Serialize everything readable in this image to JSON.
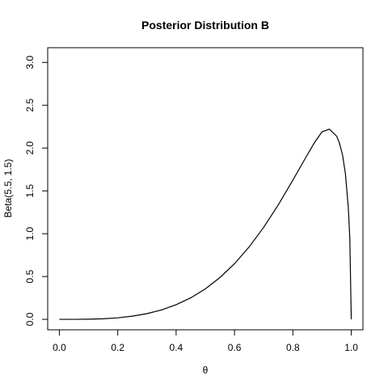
{
  "chart_data": {
    "type": "line",
    "title": "Posterior Distribution B",
    "xlabel": "θ",
    "ylabel": "Beta(5.5, 1.5)",
    "xlim": [
      -0.04,
      1.04
    ],
    "ylim": [
      -0.122,
      3.172
    ],
    "xticks": [
      0.0,
      0.2,
      0.4,
      0.6,
      0.8,
      1.0
    ],
    "xtick_labels": [
      "0.0",
      "0.2",
      "0.4",
      "0.6",
      "0.8",
      "1.0"
    ],
    "yticks": [
      0.0,
      0.5,
      1.0,
      1.5,
      2.0,
      2.5,
      3.0
    ],
    "ytick_labels": [
      "0.0",
      "0.5",
      "1.0",
      "1.5",
      "2.0",
      "2.5",
      "3.0"
    ],
    "grid": false,
    "legend": "none",
    "series": [
      {
        "color": "#000000",
        "x": [
          0.0,
          0.05,
          0.1,
          0.15,
          0.2,
          0.25,
          0.3,
          0.35,
          0.4,
          0.45,
          0.5,
          0.55,
          0.6,
          0.65,
          0.7,
          0.75,
          0.8,
          0.85,
          0.875,
          0.9,
          0.925,
          0.95,
          0.96,
          0.97,
          0.98,
          0.99,
          0.995,
          1.0
        ],
        "y": [
          0.0,
          0.0001,
          0.0017,
          0.0066,
          0.018,
          0.037,
          0.067,
          0.11,
          0.171,
          0.251,
          0.356,
          0.488,
          0.65,
          0.845,
          1.075,
          1.337,
          1.626,
          1.925,
          2.069,
          2.19,
          2.22,
          2.139,
          2.053,
          1.92,
          1.7,
          1.3,
          0.95,
          0.0
        ]
      }
    ]
  }
}
